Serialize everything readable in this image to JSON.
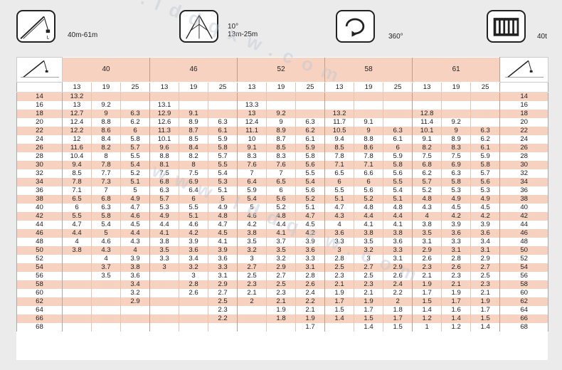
{
  "header": {
    "icon1": {
      "name": "luffing-jib-crane-icon",
      "text": "40m-61m",
      "small": "L"
    },
    "icon2": {
      "name": "jib-angle-icon",
      "line1": "10°",
      "line2": "13m-25m"
    },
    "icon3": {
      "name": "slew-rotation-icon",
      "text": "360°"
    },
    "icon4": {
      "name": "counterweight-icon",
      "text": "40t"
    }
  },
  "watermark": "www.lddqxw.com",
  "table": {
    "boom_lengths": [
      "40",
      "46",
      "52",
      "58",
      "61"
    ],
    "jib_lengths": [
      "13",
      "19",
      "25"
    ],
    "rows": [
      {
        "r": "14",
        "v": [
          "13.2",
          "",
          "",
          "",
          "",
          "",
          "",
          "",
          "",
          "",
          "",
          "",
          "",
          "",
          ""
        ]
      },
      {
        "r": "16",
        "v": [
          "13",
          "9.2",
          "",
          "13.1",
          "",
          "",
          "13.3",
          "",
          "",
          "",
          "",
          "",
          "",
          "",
          ""
        ]
      },
      {
        "r": "18",
        "v": [
          "12.7",
          "9",
          "6.3",
          "12.9",
          "9.1",
          "",
          "13",
          "9.2",
          "",
          "13.2",
          "",
          "",
          "12.8",
          "",
          ""
        ]
      },
      {
        "r": "20",
        "v": [
          "12.4",
          "8.8",
          "6.2",
          "12.6",
          "8.9",
          "6.3",
          "12.4",
          "9",
          "6.3",
          "11.7",
          "9.1",
          "",
          "11.4",
          "9.2",
          ""
        ]
      },
      {
        "r": "22",
        "v": [
          "12.2",
          "8.6",
          "6",
          "11.3",
          "8.7",
          "6.1",
          "11.1",
          "8.9",
          "6.2",
          "10.5",
          "9",
          "6.3",
          "10.1",
          "9",
          "6.3"
        ]
      },
      {
        "r": "24",
        "v": [
          "12",
          "8.4",
          "5.8",
          "10.1",
          "8.5",
          "5.9",
          "10",
          "8.7",
          "6.1",
          "9.4",
          "8.8",
          "6.1",
          "9.1",
          "8.9",
          "6.2"
        ]
      },
      {
        "r": "26",
        "v": [
          "11.6",
          "8.2",
          "5.7",
          "9.6",
          "8.4",
          "5.8",
          "9.1",
          "8.5",
          "5.9",
          "8.5",
          "8.6",
          "6",
          "8.2",
          "8.3",
          "6.1"
        ]
      },
      {
        "r": "28",
        "v": [
          "10.4",
          "8",
          "5.5",
          "8.8",
          "8.2",
          "5.7",
          "8.3",
          "8.3",
          "5.8",
          "7.8",
          "7.8",
          "5.9",
          "7.5",
          "7.5",
          "5.9"
        ]
      },
      {
        "r": "30",
        "v": [
          "9.4",
          "7.8",
          "5.4",
          "8.1",
          "8",
          "5.5",
          "7.6",
          "7.6",
          "5.6",
          "7.1",
          "7.1",
          "5.8",
          "6.8",
          "6.9",
          "5.8"
        ]
      },
      {
        "r": "32",
        "v": [
          "8.5",
          "7.7",
          "5.2",
          "7.5",
          "7.5",
          "5.4",
          "7",
          "7",
          "5.5",
          "6.5",
          "6.6",
          "5.6",
          "6.2",
          "6.3",
          "5.7"
        ]
      },
      {
        "r": "34",
        "v": [
          "7.8",
          "7.3",
          "5.1",
          "6.8",
          "6.9",
          "5.3",
          "6.4",
          "6.5",
          "5.4",
          "6",
          "6",
          "5.5",
          "5.7",
          "5.8",
          "5.6"
        ]
      },
      {
        "r": "36",
        "v": [
          "7.1",
          "7",
          "5",
          "6.3",
          "6.4",
          "5.1",
          "5.9",
          "6",
          "5.6",
          "5.5",
          "5.6",
          "5.4",
          "5.2",
          "5.3",
          "5.3"
        ]
      },
      {
        "r": "38",
        "v": [
          "6.5",
          "6.8",
          "4.9",
          "5.7",
          "6",
          "5",
          "5.4",
          "5.6",
          "5.2",
          "5.1",
          "5.2",
          "5.1",
          "4.8",
          "4.9",
          "4.9"
        ]
      },
      {
        "r": "40",
        "v": [
          "6",
          "6.3",
          "4.7",
          "5.3",
          "5.5",
          "4.9",
          "5",
          "5.2",
          "5.1",
          "4.7",
          "4.8",
          "4.8",
          "4.3",
          "4.5",
          "4.5"
        ]
      },
      {
        "r": "42",
        "v": [
          "5.5",
          "5.8",
          "4.6",
          "4.9",
          "5.1",
          "4.8",
          "4.6",
          "4.8",
          "4.7",
          "4.3",
          "4.4",
          "4.4",
          "4",
          "4.2",
          "4.2"
        ]
      },
      {
        "r": "44",
        "v": [
          "4.7",
          "5.4",
          "4.5",
          "4.4",
          "4.6",
          "4.7",
          "4.2",
          "4.4",
          "4.5",
          "4",
          "4.1",
          "4.1",
          "3.8",
          "3.9",
          "3.9"
        ]
      },
      {
        "r": "46",
        "v": [
          "4.4",
          "5",
          "4.4",
          "4.1",
          "4.2",
          "4.5",
          "3.8",
          "4.1",
          "4.2",
          "3.6",
          "3.8",
          "3.8",
          "3.5",
          "3.6",
          "3.6"
        ]
      },
      {
        "r": "48",
        "v": [
          "4",
          "4.6",
          "4.3",
          "3.8",
          "3.9",
          "4.1",
          "3.5",
          "3.7",
          "3.9",
          "3.3",
          "3.5",
          "3.6",
          "3.1",
          "3.3",
          "3.4"
        ]
      },
      {
        "r": "50",
        "v": [
          "3.8",
          "4.3",
          "4",
          "3.5",
          "3.6",
          "3.9",
          "3.2",
          "3.5",
          "3.6",
          "3",
          "3.2",
          "3.3",
          "2.9",
          "3.1",
          "3.1"
        ]
      },
      {
        "r": "52",
        "v": [
          "",
          "4",
          "3.9",
          "3.3",
          "3.4",
          "3.6",
          "3",
          "3.2",
          "3.3",
          "2.8",
          "3",
          "3.1",
          "2.6",
          "2.8",
          "2.9"
        ]
      },
      {
        "r": "54",
        "v": [
          "",
          "3.7",
          "3.8",
          "3",
          "3.2",
          "3.3",
          "2.7",
          "2.9",
          "3.1",
          "2.5",
          "2.7",
          "2.9",
          "2.3",
          "2.6",
          "2.7"
        ]
      },
      {
        "r": "56",
        "v": [
          "",
          "3.5",
          "3.6",
          "",
          "3",
          "3.1",
          "2.5",
          "2.7",
          "2.8",
          "2.3",
          "2.5",
          "2.6",
          "2.1",
          "2.3",
          "2.5"
        ]
      },
      {
        "r": "58",
        "v": [
          "",
          "",
          "3.4",
          "",
          "2.8",
          "2.9",
          "2.3",
          "2.5",
          "2.6",
          "2.1",
          "2.3",
          "2.4",
          "1.9",
          "2.1",
          "2.3"
        ]
      },
      {
        "r": "60",
        "v": [
          "",
          "",
          "3.2",
          "",
          "2.6",
          "2.7",
          "2.1",
          "2.3",
          "2.4",
          "1.9",
          "2.1",
          "2.2",
          "1.7",
          "1.9",
          "2.1"
        ]
      },
      {
        "r": "62",
        "v": [
          "",
          "",
          "2.9",
          "",
          "",
          "2.5",
          "2",
          "2.1",
          "2.2",
          "1.7",
          "1.9",
          "2",
          "1.5",
          "1.7",
          "1.9"
        ]
      },
      {
        "r": "64",
        "v": [
          "",
          "",
          "",
          "",
          "",
          "2.3",
          "",
          "1.9",
          "2.1",
          "1.5",
          "1.7",
          "1.8",
          "1.4",
          "1.6",
          "1.7"
        ]
      },
      {
        "r": "66",
        "v": [
          "",
          "",
          "",
          "",
          "",
          "2.2",
          "",
          "1.8",
          "1.9",
          "1.4",
          "1.5",
          "1.7",
          "1.2",
          "1.4",
          "1.5"
        ]
      },
      {
        "r": "68",
        "v": [
          "",
          "",
          "",
          "",
          "",
          "",
          "",
          "",
          "1.7",
          "",
          "1.4",
          "1.5",
          "1",
          "1.2",
          "1.4"
        ]
      }
    ]
  }
}
